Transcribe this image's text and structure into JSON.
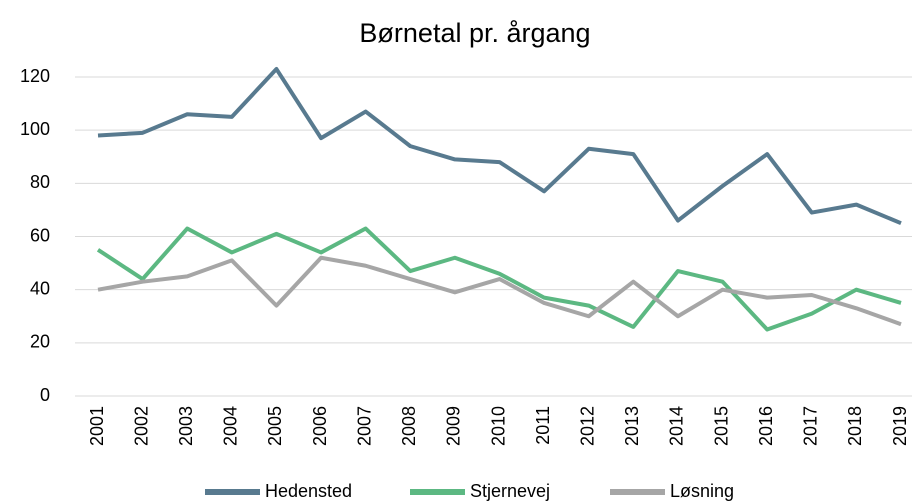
{
  "chart_data": {
    "type": "line",
    "title": "Børnetal pr. årgang",
    "categories": [
      "2001",
      "2002",
      "2003",
      "2004",
      "2005",
      "2006",
      "2007",
      "2008",
      "2009",
      "2010",
      "2011",
      "2012",
      "2013",
      "2014",
      "2015",
      "2016",
      "2017",
      "2018",
      "2019"
    ],
    "series": [
      {
        "name": "Hedensted",
        "color": "#587a8f",
        "values": [
          98,
          99,
          106,
          105,
          123,
          97,
          107,
          94,
          89,
          88,
          77,
          93,
          91,
          66,
          79,
          91,
          69,
          72,
          65
        ]
      },
      {
        "name": "Stjernevej",
        "color": "#5cb882",
        "values": [
          55,
          44,
          63,
          54,
          61,
          54,
          63,
          47,
          52,
          46,
          37,
          34,
          26,
          47,
          43,
          25,
          31,
          40,
          35
        ]
      },
      {
        "name": "Løsning",
        "color": "#a6a6a6",
        "values": [
          40,
          43,
          45,
          51,
          34,
          52,
          49,
          44,
          39,
          44,
          35,
          30,
          43,
          30,
          40,
          37,
          38,
          33,
          27
        ]
      }
    ],
    "ylim": [
      0,
      120
    ],
    "yticks": [
      0,
      20,
      40,
      60,
      80,
      100,
      120
    ],
    "grid": true,
    "legend": "bottom"
  }
}
